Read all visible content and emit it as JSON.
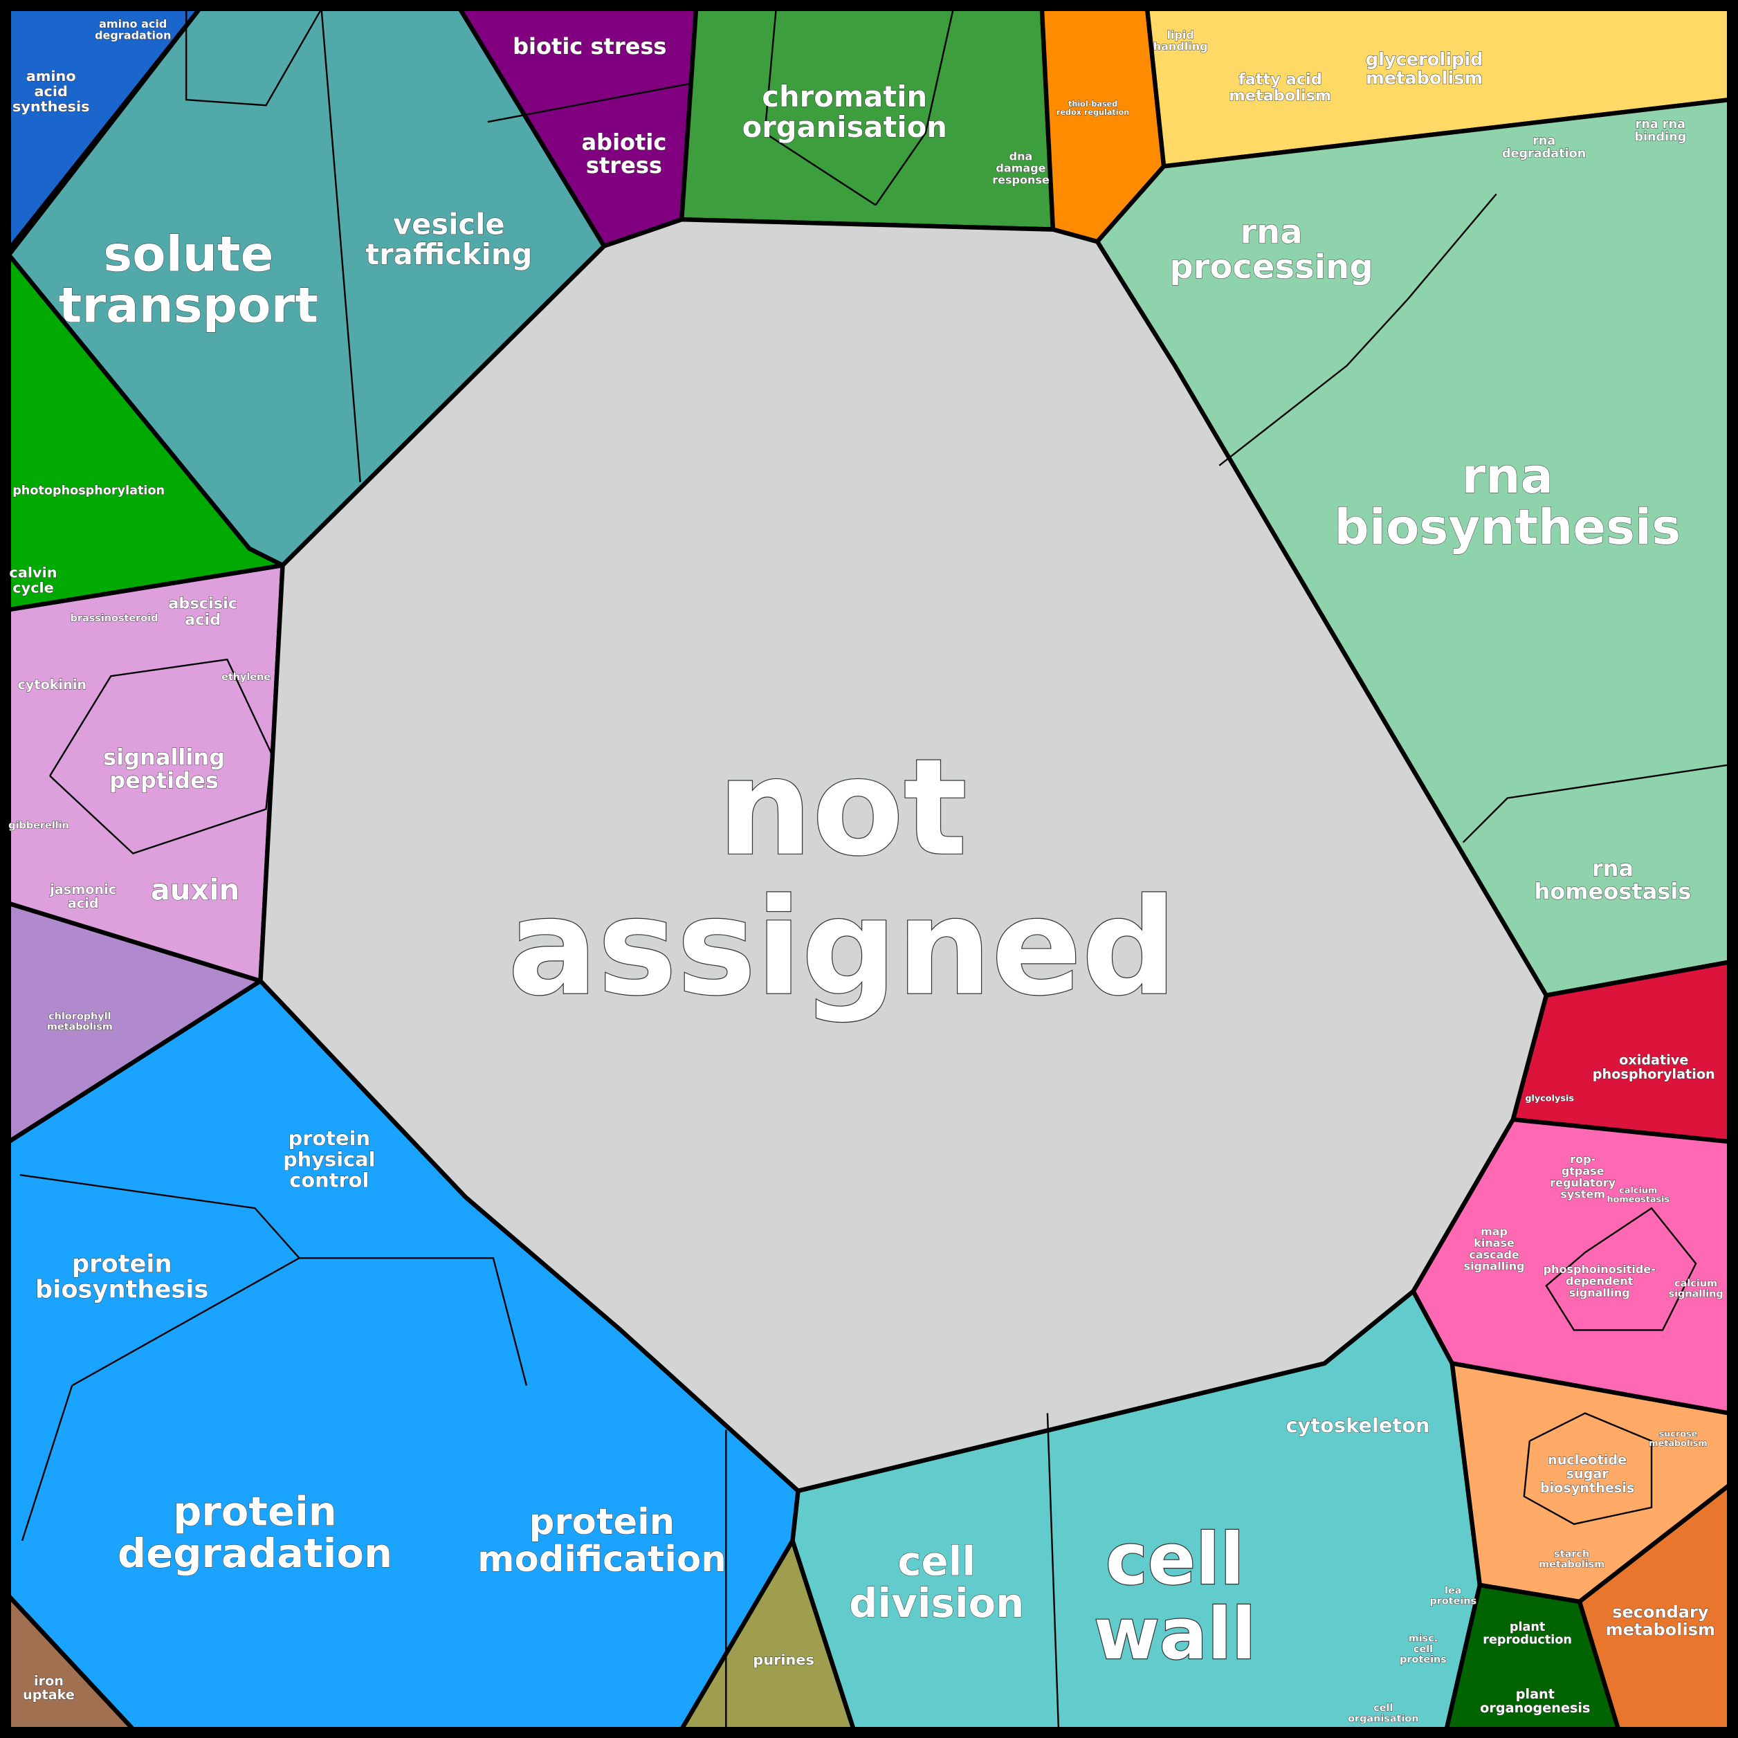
{
  "labels": [
    [
      "not",
      "assigned"
    ],
    [
      "solute",
      "transport"
    ],
    [
      "vesicle",
      "trafficking"
    ],
    [
      "biotic stress"
    ],
    [
      "abiotic",
      "stress"
    ],
    [
      "chromatin",
      "organisation"
    ],
    [
      "rna",
      "processing"
    ],
    [
      "rna",
      "biosynthesis"
    ],
    [
      "rna",
      "homeostasis"
    ],
    [
      "oxidative",
      "phosphorylation"
    ],
    [
      "cytoskeleton"
    ],
    [
      "cell",
      "division"
    ],
    [
      "cell",
      "wall"
    ],
    [
      "protein",
      "degradation"
    ],
    [
      "protein",
      "modification"
    ],
    [
      "protein",
      "biosynthesis"
    ],
    [
      "protein",
      "physical",
      "control"
    ],
    [
      "auxin"
    ],
    [
      "signalling",
      "peptides"
    ],
    [
      "photophosphorylation"
    ],
    [
      "calvin",
      "cycle"
    ],
    [
      "amino",
      "acid",
      "synthesis"
    ],
    [
      "amino acid",
      "degradation"
    ],
    [
      "fatty acid",
      "metabolism"
    ],
    [
      "glycerolipid",
      "metabolism"
    ],
    [
      "secondary",
      "metabolism"
    ],
    [
      "plant",
      "reproduction"
    ],
    [
      "plant",
      "organogenesis"
    ],
    [
      "purines"
    ],
    [
      "iron",
      "uptake"
    ],
    [
      "nucleotide",
      "sugar",
      "biosynthesis"
    ],
    [
      "phosphoinositide-",
      "dependent",
      "signalling"
    ],
    [
      "map",
      "kinase",
      "cascade",
      "signalling"
    ],
    [
      "abscisic",
      "acid"
    ],
    [
      "cytokinin"
    ],
    [
      "jasmonic",
      "acid"
    ],
    [
      "dna",
      "damage",
      "response"
    ],
    [
      "lipid",
      "handling"
    ],
    [
      "rna",
      "degradation"
    ],
    [
      "rna rna",
      "binding"
    ],
    [
      "cell",
      "organisation"
    ],
    [
      "misc.",
      "cell",
      "proteins"
    ],
    [
      "lea",
      "proteins"
    ],
    [
      "chlorophyll",
      "metabolism"
    ],
    [
      "glycolysis"
    ],
    [
      "calcium",
      "homeostasis"
    ],
    [
      "calcium",
      "signalling"
    ],
    [
      "brassinosteroid"
    ],
    [
      "ethylene"
    ],
    [
      "gibberellin"
    ],
    [
      "starch",
      "metabolism"
    ],
    [
      "sucrose",
      "metabolism"
    ],
    [
      "thiol-based",
      "redox regulation"
    ],
    [
      "rop-",
      "gtpase",
      "regulatory",
      "system"
    ]
  ]
}
